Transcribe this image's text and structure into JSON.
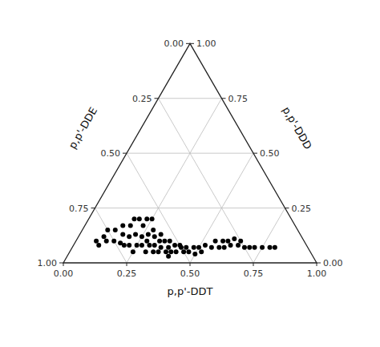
{
  "chart_data": {
    "type": "ternary",
    "xlabel": "p,p'-DDT",
    "left_label": "p,p'-DDE",
    "right_label": "p,p'-DDD",
    "grid": true,
    "color": "#000000",
    "bottom_ticks": [
      {
        "value": 0.0,
        "label": "0.00"
      },
      {
        "value": 0.25,
        "label": "0.25"
      },
      {
        "value": 0.5,
        "label": "0.50"
      },
      {
        "value": 0.75,
        "label": "0.75"
      },
      {
        "value": 1.0,
        "label": "1.00"
      }
    ],
    "left_ticks": [
      {
        "value": 1.0,
        "label": "1.00"
      },
      {
        "value": 0.75,
        "label": "0.75"
      },
      {
        "value": 0.5,
        "label": "0.50"
      },
      {
        "value": 0.25,
        "label": "0.25"
      },
      {
        "value": 0.0,
        "label": "0.00"
      }
    ],
    "right_ticks": [
      {
        "value": 0.0,
        "label": "0.00"
      },
      {
        "value": 0.25,
        "label": "0.25"
      },
      {
        "value": 0.5,
        "label": "0.50"
      },
      {
        "value": 0.75,
        "label": "0.75"
      },
      {
        "value": 1.0,
        "label": "1.00"
      }
    ],
    "ddt": [
      0.1,
      0.12,
      0.13,
      0.15,
      0.17,
      0.18,
      0.2,
      0.2,
      0.22,
      0.23,
      0.25,
      0.25,
      0.27,
      0.28,
      0.28,
      0.3,
      0.3,
      0.32,
      0.32,
      0.33,
      0.35,
      0.35,
      0.37,
      0.38,
      0.4,
      0.4,
      0.42,
      0.42,
      0.43,
      0.45,
      0.45,
      0.47,
      0.48,
      0.5,
      0.5,
      0.52,
      0.1,
      0.15,
      0.18,
      0.22,
      0.25,
      0.27,
      0.3,
      0.33,
      0.35,
      0.38,
      0.4,
      0.08,
      0.1,
      0.2,
      0.23,
      0.25,
      0.18,
      0.55,
      0.58,
      0.6,
      0.62,
      0.65,
      0.68,
      0.7,
      0.72,
      0.75,
      0.78,
      0.8,
      0.55,
      0.58,
      0.6,
      0.62,
      0.65,
      0.52
    ],
    "dde": [
      0.82,
      0.78,
      0.72,
      0.75,
      0.7,
      0.65,
      0.68,
      0.72,
      0.65,
      0.6,
      0.63,
      0.67,
      0.6,
      0.57,
      0.62,
      0.58,
      0.62,
      0.55,
      0.6,
      0.57,
      0.55,
      0.58,
      0.53,
      0.55,
      0.52,
      0.55,
      0.5,
      0.53,
      0.5,
      0.48,
      0.5,
      0.48,
      0.45,
      0.43,
      0.46,
      0.43,
      0.78,
      0.68,
      0.73,
      0.7,
      0.7,
      0.65,
      0.65,
      0.62,
      0.6,
      0.57,
      0.57,
      0.82,
      0.75,
      0.6,
      0.57,
      0.55,
      0.62,
      0.38,
      0.35,
      0.33,
      0.3,
      0.27,
      0.25,
      0.23,
      0.21,
      0.18,
      0.15,
      0.13,
      0.35,
      0.32,
      0.3,
      0.27,
      0.25,
      0.4
    ],
    "ddd": [
      0.08,
      0.1,
      0.15,
      0.1,
      0.13,
      0.17,
      0.12,
      0.08,
      0.13,
      0.17,
      0.12,
      0.08,
      0.13,
      0.15,
      0.1,
      0.12,
      0.08,
      0.13,
      0.08,
      0.1,
      0.1,
      0.07,
      0.1,
      0.07,
      0.08,
      0.05,
      0.08,
      0.05,
      0.07,
      0.07,
      0.05,
      0.05,
      0.07,
      0.07,
      0.04,
      0.05,
      0.12,
      0.17,
      0.09,
      0.08,
      0.05,
      0.08,
      0.05,
      0.05,
      0.05,
      0.05,
      0.03,
      0.1,
      0.15,
      0.2,
      0.2,
      0.2,
      0.2,
      0.07,
      0.07,
      0.07,
      0.08,
      0.08,
      0.07,
      0.07,
      0.07,
      0.07,
      0.07,
      0.07,
      0.1,
      0.1,
      0.1,
      0.11,
      0.1,
      0.08
    ]
  }
}
